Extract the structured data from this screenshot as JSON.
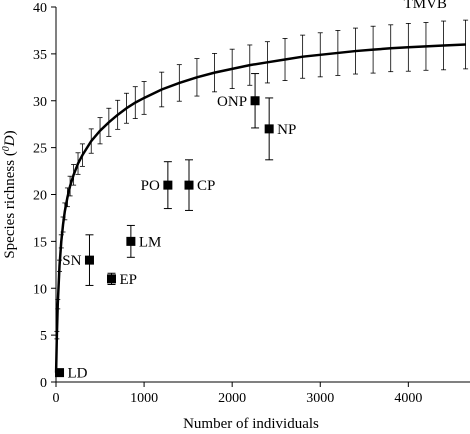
{
  "chart_data": {
    "type": "scatter",
    "xlabel": "Number of individuals",
    "ylabel_main": "Species richness (",
    "ylabel_sup": "0",
    "ylabel_var": "D",
    "ylabel_end": ")",
    "xlim": [
      0,
      4700
    ],
    "ylim": [
      0,
      40
    ],
    "xticks": [
      0,
      1000,
      2000,
      3000,
      4000
    ],
    "yticks": [
      0,
      5,
      10,
      15,
      20,
      25,
      30,
      35,
      40
    ],
    "grid": false,
    "curve": {
      "label": "TMVB",
      "x": [
        1,
        10,
        20,
        40,
        60,
        80,
        100,
        130,
        160,
        200,
        250,
        300,
        400,
        500,
        600,
        700,
        800,
        900,
        1000,
        1200,
        1400,
        1600,
        1800,
        2000,
        2200,
        2400,
        2600,
        2800,
        3000,
        3200,
        3400,
        3600,
        3800,
        4000,
        4200,
        4400,
        4650
      ],
      "y": [
        1.0,
        5.0,
        8.3,
        12.4,
        15.0,
        16.8,
        18.2,
        19.7,
        20.9,
        22.1,
        23.3,
        24.2,
        25.7,
        26.8,
        27.7,
        28.5,
        29.2,
        29.8,
        30.3,
        31.2,
        31.9,
        32.5,
        33.0,
        33.4,
        33.8,
        34.1,
        34.4,
        34.7,
        34.9,
        35.1,
        35.3,
        35.45,
        35.6,
        35.7,
        35.8,
        35.9,
        36.0
      ],
      "err": [
        0.0,
        0.4,
        0.5,
        0.6,
        0.7,
        0.8,
        0.9,
        1.0,
        1.05,
        1.1,
        1.15,
        1.2,
        1.3,
        1.4,
        1.5,
        1.55,
        1.6,
        1.7,
        1.75,
        1.85,
        1.95,
        2.0,
        2.05,
        2.1,
        2.15,
        2.2,
        2.25,
        2.3,
        2.35,
        2.4,
        2.45,
        2.5,
        2.5,
        2.55,
        2.55,
        2.6,
        2.6
      ]
    },
    "points": [
      {
        "label": "LD",
        "x": 40,
        "y": 1.0,
        "err": 0.0,
        "label_side": "right"
      },
      {
        "label": "SN",
        "x": 380,
        "y": 13.0,
        "err": 2.7,
        "label_side": "left"
      },
      {
        "label": "EP",
        "x": 630,
        "y": 11.0,
        "err": 0.6,
        "label_side": "right"
      },
      {
        "label": "LM",
        "x": 850,
        "y": 15.0,
        "err": 1.7,
        "label_side": "right"
      },
      {
        "label": "PO",
        "x": 1270,
        "y": 21.0,
        "err": 2.5,
        "label_side": "left"
      },
      {
        "label": "CP",
        "x": 1510,
        "y": 21.0,
        "err": 2.7,
        "label_side": "right"
      },
      {
        "label": "ONP",
        "x": 2260,
        "y": 30.0,
        "err": 2.9,
        "label_side": "left"
      },
      {
        "label": "NP",
        "x": 2420,
        "y": 27.0,
        "err": 3.3,
        "label_side": "right"
      }
    ]
  }
}
